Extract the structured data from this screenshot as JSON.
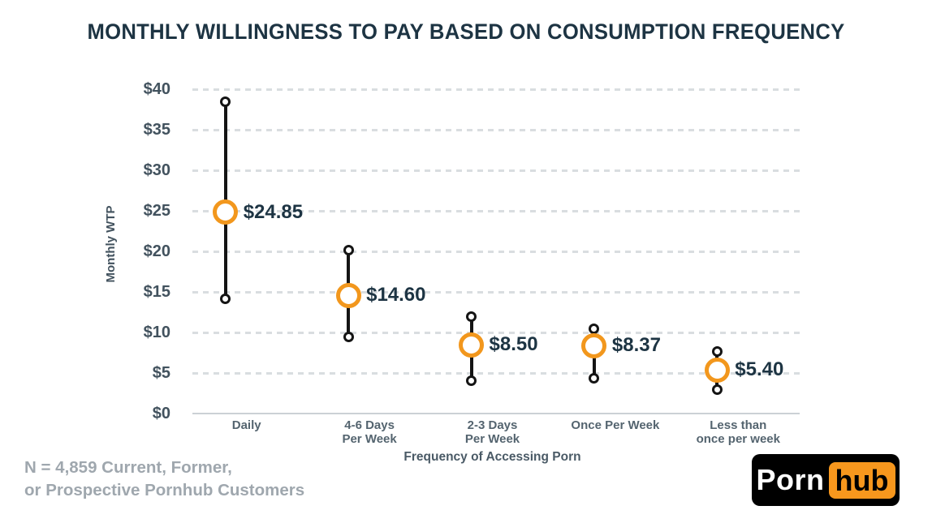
{
  "title": "MONTHLY WILLINGNESS TO PAY BASED ON CONSUMPTION FREQUENCY",
  "footer": {
    "line1": "N = 4,859 Current, Former,",
    "line2": "or Prospective Pornhub Customers"
  },
  "logo": {
    "part1": "Porn",
    "part2": "hub",
    "orange": "#F7971D"
  },
  "chart_data": {
    "type": "scatter",
    "subtype": "dot-plot-with-range-whiskers",
    "title": "MONTHLY WILLINGNESS TO PAY BASED ON CONSUMPTION FREQUENCY",
    "xlabel": "Frequency of Accessing Porn",
    "ylabel": "Monthly WTP",
    "ylim": [
      0,
      40
    ],
    "y_ticks": [
      "$0",
      "$5",
      "$10",
      "$15",
      "$20",
      "$25",
      "$30",
      "$35",
      "$40"
    ],
    "y_tick_step": 5,
    "grid": "dashed horizontal gridlines, solid baseline at $0, no legend",
    "categories": [
      "Daily",
      "4-6 Days\nPer Week",
      "2-3 Days\nPer Week",
      "Once Per Week",
      "Less than\nonce per week"
    ],
    "points": [
      {
        "category": "Daily",
        "value": 24.85,
        "value_label": "$24.85",
        "range_low": 14.2,
        "range_high": 38.5
      },
      {
        "category": "4-6 Days Per Week",
        "value": 14.6,
        "value_label": "$14.60",
        "range_low": 9.5,
        "range_high": 20.2
      },
      {
        "category": "2-3 Days Per Week",
        "value": 8.5,
        "value_label": "$8.50",
        "range_low": 4.1,
        "range_high": 12.0
      },
      {
        "category": "Once Per Week",
        "value": 8.37,
        "value_label": "$8.37",
        "range_low": 4.4,
        "range_high": 10.5
      },
      {
        "category": "Less than once per week",
        "value": 5.4,
        "value_label": "$5.40",
        "range_low": 3.0,
        "range_high": 7.7
      }
    ],
    "colors": {
      "marker": "#F2971D",
      "range_line": "#141414",
      "grid": "#D9DDE0",
      "baseline": "#CBD1D5",
      "value_label": "#1D3443",
      "tick_label": "#42525E",
      "category_label": "#54646F",
      "title": "#1D3443",
      "axis_title": "#4A5A66",
      "footer": "#9FA7AE",
      "logo_orange": "#F7971D",
      "background": "#FFFFFF"
    }
  }
}
